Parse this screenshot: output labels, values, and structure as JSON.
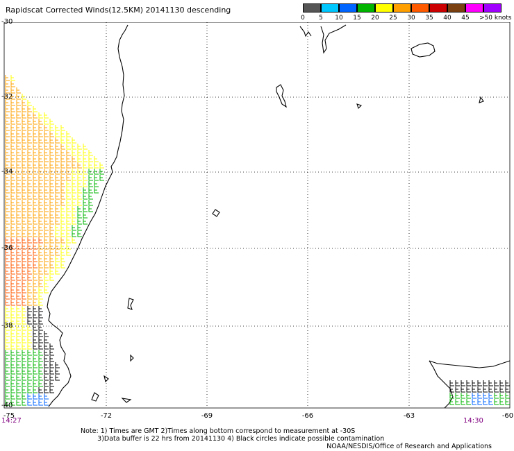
{
  "header": {
    "title": "Rapidscat Corrected Winds(12.5KM) 20141130 descending"
  },
  "legend": {
    "units": "knots",
    "labels": [
      "0",
      "5",
      "10",
      "15",
      "20",
      "25",
      "30",
      "35",
      "40",
      "45",
      ">50 knots"
    ],
    "colors": [
      "#555555",
      "#00c8ff",
      "#0064ff",
      "#00b400",
      "#ffff00",
      "#ffa000",
      "#ff5a00",
      "#cc0000",
      "#7a4010",
      "#ff00ff",
      "#a000ff"
    ]
  },
  "axes": {
    "lat_labels": [
      "-30",
      "-32",
      "-34",
      "-36",
      "-38",
      "-40"
    ],
    "lon_labels": [
      "-75",
      "-72",
      "-69",
      "-66",
      "-63",
      "-60"
    ]
  },
  "times": {
    "left": "14:27",
    "right": "14:30"
  },
  "footer": {
    "note1": "Note: 1) Times are GMT 2)Times along bottom correspond to measurement at -30S",
    "note2": "3)Data buffer is 22 hrs from 20141130 4) Black circles indicate possible contamination",
    "credit": "NOAA/NESDIS/Office of Research and Applications"
  }
}
